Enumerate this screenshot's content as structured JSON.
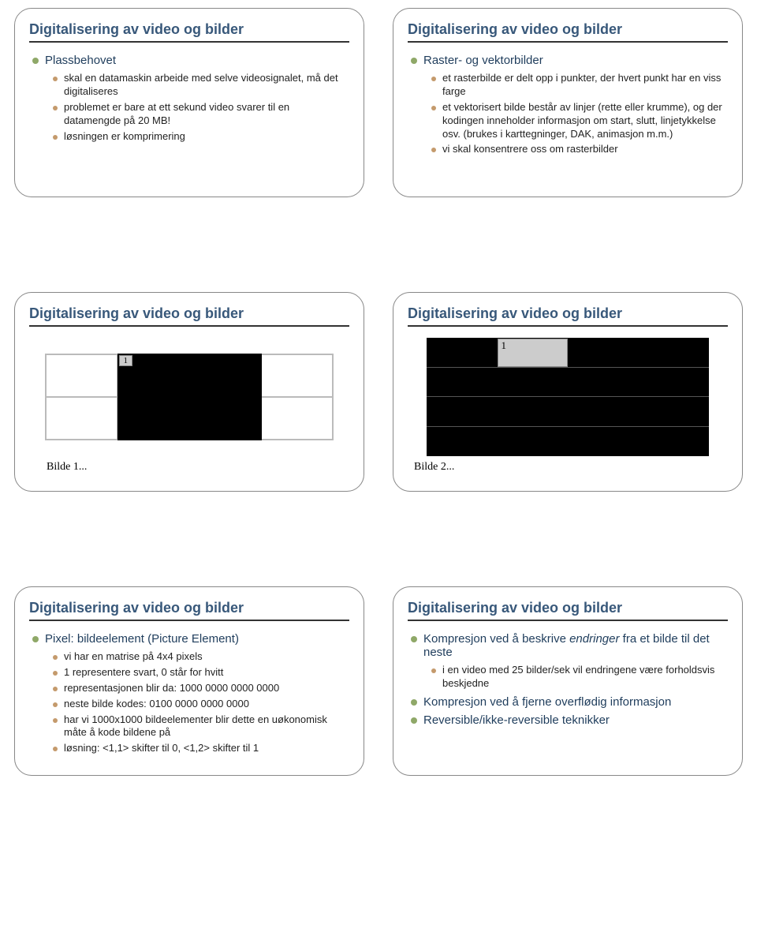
{
  "colors": {
    "title": "#38587a",
    "bullet1": "#8fa868",
    "bullet2": "#c49a6c",
    "bullet3": "#b88a54",
    "l1_text": "#1f3d5c",
    "l2_text": "#222222",
    "l3_text": "#222222"
  },
  "slides": [
    {
      "title": "Digitalisering av video og bilder",
      "items": [
        {
          "level": 1,
          "text": "Plassbehovet"
        },
        {
          "level": 2,
          "text": "skal en datamaskin arbeide med selve videosignalet, må det digitaliseres"
        },
        {
          "level": 2,
          "text": "problemet er bare at ett sekund video svarer til en datamengde på 20 MB!"
        },
        {
          "level": 2,
          "text": "løsningen er komprimering"
        }
      ]
    },
    {
      "title": "Digitalisering av video og bilder",
      "items": [
        {
          "level": 1,
          "text": "Raster- og vektorbilder"
        },
        {
          "level": 2,
          "text": "et rasterbilde er delt opp i punkter, der hvert punkt har en viss farge"
        },
        {
          "level": 2,
          "text": "et vektorisert bilde består av linjer (rette eller krumme), og der kodingen inneholder informasjon om start, slutt, linjetykkelse osv. (brukes i karttegninger, DAK, animasjon m.m.)"
        },
        {
          "level": 2,
          "text": "vi skal konsentrere oss om rasterbilder"
        }
      ]
    },
    {
      "title": "Digitalisering av video og bilder",
      "figure": {
        "type": "fig3",
        "label": "1",
        "caption": "Bilde 1..."
      }
    },
    {
      "title": "Digitalisering av video og bilder",
      "figure": {
        "type": "fig4",
        "label": "1",
        "caption": "Bilde 2..."
      }
    },
    {
      "title": "Digitalisering av video og bilder",
      "items": [
        {
          "level": 1,
          "text": "Pixel: bildeelement (Picture Element)"
        },
        {
          "level": 2,
          "text": "vi har en matrise på 4x4 pixels"
        },
        {
          "level": 2,
          "text": "1 representere svart, 0 står for hvitt"
        },
        {
          "level": 2,
          "text": "representasjonen blir da: 1000 0000 0000 0000"
        },
        {
          "level": 2,
          "text": "neste bilde kodes: 0100 0000 0000 0000"
        },
        {
          "level": 2,
          "text": "har vi 1000x1000 bildeelementer blir dette en uøkonomisk måte å kode bildene på"
        },
        {
          "level": 2,
          "text": "løsning: <1,1> skifter til 0, <1,2> skifter til 1"
        }
      ]
    },
    {
      "title": "Digitalisering av video og bilder",
      "items": [
        {
          "level": 1,
          "html": "Kompresjon ved å beskrive <i>endringer</i> fra et bilde til det neste"
        },
        {
          "level": 2,
          "text": "i en video med 25 bilder/sek vil endringene være forholdsvis beskjedne"
        },
        {
          "level": 1,
          "text": "Kompresjon ved å fjerne overflødig informasjon"
        },
        {
          "level": 1,
          "text": "Reversible/ikke-reversible teknikker"
        }
      ]
    }
  ]
}
